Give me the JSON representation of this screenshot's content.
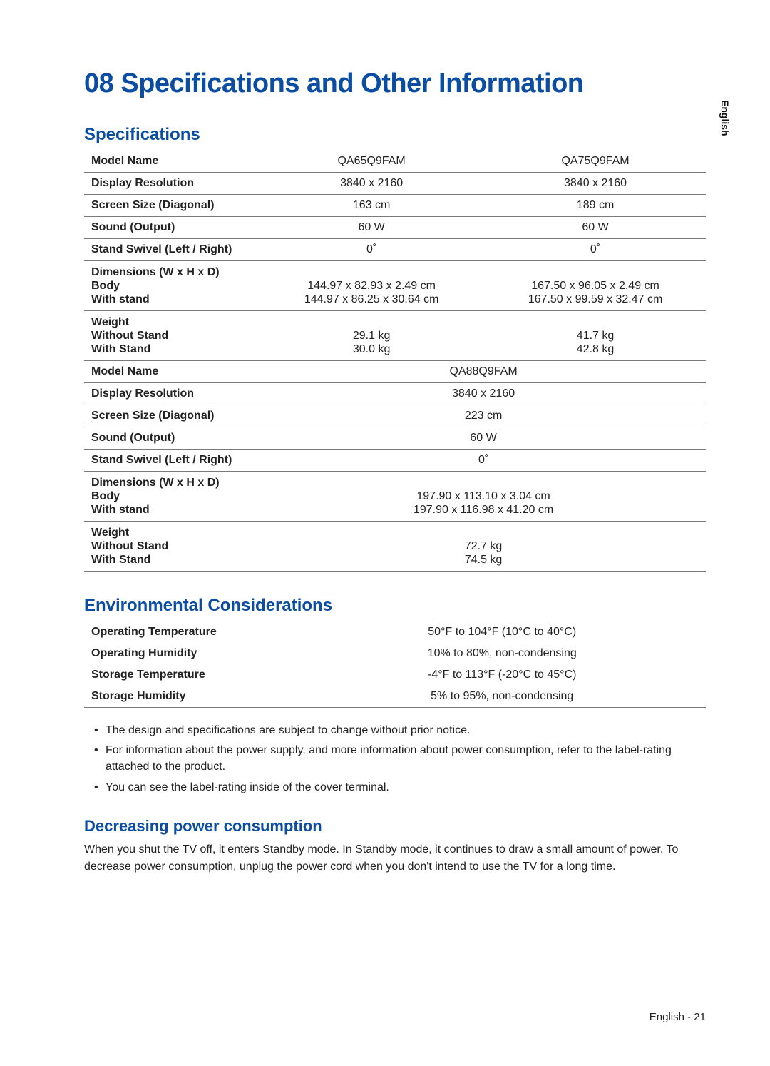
{
  "sideLang": "English",
  "title": "08  Specifications and Other Information",
  "specHeading": "Specifications",
  "specs1": {
    "modelNameLabel": "Model Name",
    "model1": "QA65Q9FAM",
    "model2": "QA75Q9FAM",
    "resLabel": "Display Resolution",
    "res1": "3840 x 2160",
    "res2": "3840 x 2160",
    "sizeLabel": "Screen Size (Diagonal)",
    "size1": "163 cm",
    "size2": "189 cm",
    "soundLabel": "Sound (Output)",
    "sound1": "60 W",
    "sound2": "60 W",
    "swivelLabel": "Stand Swivel (Left / Right)",
    "swivel1": "0˚",
    "swivel2": "0˚",
    "dimLabel": "Dimensions (W x H x D)",
    "dimBodyLabel": "Body",
    "dimBody1": "144.97 x 82.93 x 2.49 cm",
    "dimBody2": "167.50 x 96.05 x 2.49 cm",
    "dimStandLabel": "With stand",
    "dimStand1": "144.97 x 86.25 x 30.64 cm",
    "dimStand2": "167.50 x 99.59 x 32.47 cm",
    "weightLabel": "Weight",
    "weightNoLabel": "Without Stand",
    "weightNo1": "29.1 kg",
    "weightNo2": "41.7 kg",
    "weightWithLabel": "With Stand",
    "weightWith1": "30.0 kg",
    "weightWith2": "42.8 kg"
  },
  "specs2": {
    "modelNameLabel": "Model Name",
    "model": "QA88Q9FAM",
    "resLabel": "Display Resolution",
    "res": "3840 x 2160",
    "sizeLabel": "Screen Size (Diagonal)",
    "size": "223 cm",
    "soundLabel": "Sound (Output)",
    "sound": "60 W",
    "swivelLabel": "Stand Swivel (Left / Right)",
    "swivel": "0˚",
    "dimLabel": "Dimensions (W x H x D)",
    "dimBodyLabel": "Body",
    "dimBody": "197.90 x 113.10 x 3.04 cm",
    "dimStandLabel": "With stand",
    "dimStand": "197.90 x 116.98 x 41.20 cm",
    "weightLabel": "Weight",
    "weightNoLabel": "Without Stand",
    "weightNo": "72.7 kg",
    "weightWithLabel": "With Stand",
    "weightWith": "74.5 kg"
  },
  "envHeading": "Environmental Considerations",
  "env": {
    "opTempLabel": "Operating Temperature",
    "opTemp": "50°F to 104°F (10°C to 40°C)",
    "opHumLabel": "Operating Humidity",
    "opHum": "10% to 80%, non-condensing",
    "stTempLabel": "Storage Temperature",
    "stTemp": "-4°F to 113°F (-20°C to 45°C)",
    "stHumLabel": "Storage Humidity",
    "stHum": "5% to 95%, non-condensing"
  },
  "notes": {
    "n1": "The design and specifications are subject to change without prior notice.",
    "n2": "For information about the power supply, and more information about power consumption, refer to the label-rating attached to the product.",
    "n3": "You can see the label-rating inside of the cover terminal."
  },
  "powerHeading": "Decreasing power consumption",
  "powerBody": "When you shut the TV off, it enters Standby mode. In Standby mode, it continues to draw a small amount of power. To decrease power consumption, unplug the power cord when you don't intend to use the TV for a long time.",
  "footer": "English - 21"
}
